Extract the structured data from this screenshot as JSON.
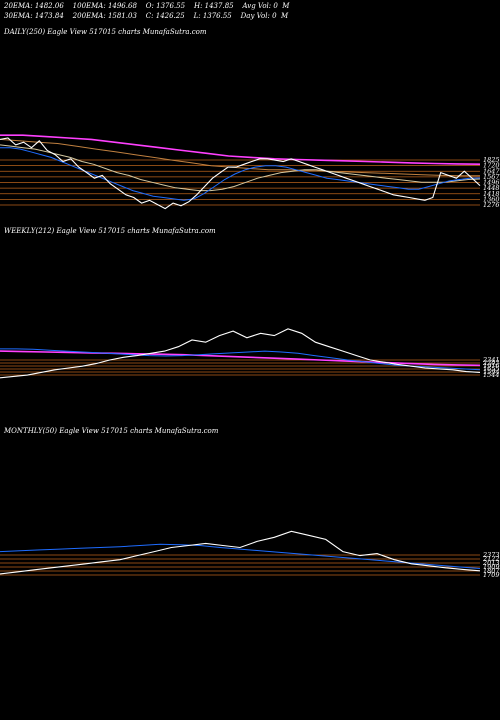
{
  "header": {
    "line1": "20EMA: 1482.06    100EMA: 1496.68    O: 1376.55    H: 1437.85    Avg Vol: 0  M",
    "line2": "30EMA: 1473.84    200EMA: 1581.03    C: 1426.25    L: 1376.55    Day Vol: 0  M"
  },
  "panels": {
    "daily": "DAILY(250) Eagle   View  517015 charts MunafaSutra.com",
    "weekly": "WEEKLY(212) Eagle   View  517015 charts MunafaSutra.com",
    "monthly": "MONTHLY(50) Eagle   View  517015 charts MunafaSutra.com"
  },
  "colors": {
    "price": "#ffffff",
    "ema20": "#1e6cff",
    "ema30": "#d4c8a0",
    "ema100": "#c08040",
    "ema200": "#ff40ff",
    "level": "#b8621b"
  },
  "chart_data": [
    {
      "type": "line",
      "name": "daily",
      "yticks": [
        "1825",
        "1720",
        "1647",
        "1567",
        "1496",
        "1448",
        "1418",
        "1360",
        "1276"
      ],
      "ylim": [
        1250,
        1900
      ],
      "series": [
        {
          "name": "price",
          "values": [
            1760,
            1770,
            1720,
            1740,
            1700,
            1750,
            1680,
            1650,
            1600,
            1620,
            1560,
            1520,
            1480,
            1500,
            1440,
            1400,
            1360,
            1340,
            1300,
            1320,
            1290,
            1260,
            1300,
            1280,
            1310,
            1360,
            1420,
            1480,
            1520,
            1560,
            1560,
            1580,
            1600,
            1620,
            1620,
            1610,
            1600,
            1620,
            1600,
            1580,
            1560,
            1540,
            1520,
            1500,
            1480,
            1460,
            1440,
            1420,
            1400,
            1380,
            1360,
            1350,
            1340,
            1330,
            1320,
            1340,
            1520,
            1500,
            1480,
            1530,
            1480,
            1426
          ]
        },
        {
          "name": "ema20",
          "values": [
            1700,
            1700,
            1690,
            1670,
            1650,
            1630,
            1600,
            1570,
            1540,
            1510,
            1480,
            1450,
            1420,
            1390,
            1370,
            1350,
            1340,
            1330,
            1320,
            1330,
            1370,
            1420,
            1470,
            1510,
            1540,
            1560,
            1570,
            1570,
            1560,
            1540,
            1520,
            1500,
            1480,
            1470,
            1460,
            1450,
            1440,
            1430,
            1420,
            1410,
            1400,
            1400,
            1420,
            1440,
            1460,
            1470,
            1480,
            1482
          ]
        },
        {
          "name": "ema30",
          "values": [
            1720,
            1710,
            1700,
            1690,
            1670,
            1650,
            1630,
            1600,
            1580,
            1550,
            1520,
            1500,
            1470,
            1450,
            1430,
            1410,
            1400,
            1390,
            1390,
            1400,
            1420,
            1450,
            1480,
            1500,
            1520,
            1530,
            1540,
            1540,
            1530,
            1520,
            1510,
            1500,
            1490,
            1480,
            1470,
            1460,
            1450,
            1450,
            1450,
            1460,
            1470,
            1474
          ]
        },
        {
          "name": "ema100",
          "values": [
            1760,
            1750,
            1740,
            1730,
            1710,
            1690,
            1670,
            1650,
            1630,
            1610,
            1590,
            1570,
            1560,
            1550,
            1540,
            1540,
            1535,
            1530,
            1525,
            1520,
            1515,
            1510,
            1505,
            1500,
            1498,
            1497
          ]
        },
        {
          "name": "ema200",
          "values": [
            1790,
            1790,
            1780,
            1770,
            1760,
            1740,
            1720,
            1700,
            1680,
            1660,
            1640,
            1630,
            1620,
            1615,
            1610,
            1605,
            1600,
            1595,
            1590,
            1586,
            1583,
            1581
          ]
        }
      ]
    },
    {
      "type": "line",
      "name": "weekly",
      "yticks": [
        "2341",
        "2202",
        "1916",
        "1655",
        "1594",
        "1544"
      ],
      "ylim": [
        1250,
        2600
      ],
      "series": [
        {
          "name": "price",
          "values": [
            1300,
            1330,
            1360,
            1420,
            1480,
            1520,
            1560,
            1620,
            1700,
            1760,
            1800,
            1850,
            1900,
            2000,
            2150,
            2100,
            2250,
            2350,
            2200,
            2300,
            2250,
            2400,
            2300,
            2100,
            2000,
            1900,
            1800,
            1700,
            1650,
            1600,
            1560,
            1520,
            1500,
            1480,
            1440,
            1420
          ]
        },
        {
          "name": "ema20",
          "values": [
            1950,
            1950,
            1940,
            1920,
            1900,
            1880,
            1860,
            1840,
            1820,
            1800,
            1790,
            1800,
            1820,
            1840,
            1860,
            1880,
            1900,
            1880,
            1850,
            1800,
            1750,
            1700,
            1660,
            1620,
            1580,
            1560,
            1540,
            1520,
            1500,
            1482
          ]
        },
        {
          "name": "ema200",
          "values": [
            1900,
            1890,
            1880,
            1870,
            1860,
            1850,
            1840,
            1830,
            1820,
            1800,
            1780,
            1760,
            1740,
            1720,
            1700,
            1680,
            1660,
            1640,
            1620,
            1600,
            1590,
            1581
          ]
        }
      ]
    },
    {
      "type": "line",
      "name": "monthly",
      "yticks": [
        "2373",
        "2122",
        "2013",
        "1909",
        "1807",
        "1709"
      ],
      "ylim": [
        1200,
        2800
      ],
      "series": [
        {
          "name": "price",
          "values": [
            1350,
            1400,
            1450,
            1500,
            1550,
            1600,
            1650,
            1700,
            1800,
            1900,
            2000,
            2050,
            2100,
            2050,
            2000,
            2150,
            2250,
            2400,
            2300,
            2200,
            1900,
            1800,
            1850,
            1700,
            1600,
            1550,
            1500,
            1460,
            1426
          ]
        },
        {
          "name": "ema20",
          "values": [
            1900,
            1920,
            1940,
            1960,
            1980,
            2000,
            2020,
            2050,
            2080,
            2070,
            2050,
            2000,
            1960,
            1920,
            1880,
            1840,
            1800,
            1760,
            1720,
            1680,
            1640,
            1600,
            1560,
            1520,
            1482
          ]
        }
      ]
    }
  ]
}
